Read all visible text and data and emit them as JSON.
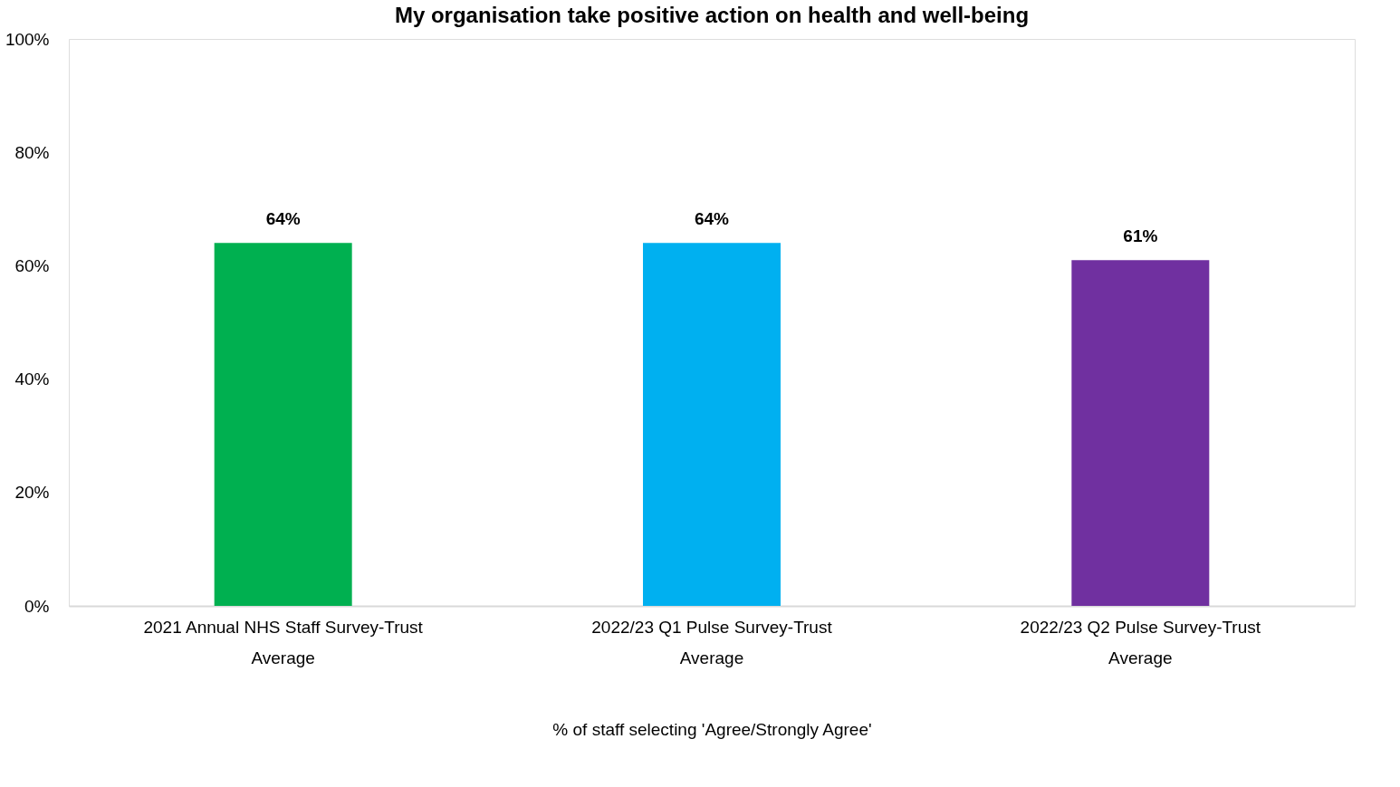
{
  "chart_data": {
    "type": "bar",
    "title": "My organisation take positive action on health and well-being",
    "categories": [
      "2021 Annual NHS Staff Survey-Trust Average",
      "2022/23 Q1 Pulse Survey-Trust Average",
      "2022/23 Q2 Pulse Survey-Trust Average"
    ],
    "values": [
      64,
      64,
      61
    ],
    "colors": [
      "#00b050",
      "#00b0f0",
      "#7030a0"
    ],
    "value_labels": [
      "64%",
      "64%",
      "61%"
    ],
    "xlabel": "% of staff selecting 'Agree/Strongly Agree'",
    "ylim": [
      0,
      100
    ],
    "yticks": [
      {
        "value": 0,
        "label": "0%"
      },
      {
        "value": 20,
        "label": "20%"
      },
      {
        "value": 40,
        "label": "40%"
      },
      {
        "value": 60,
        "label": "60%"
      },
      {
        "value": 80,
        "label": "80%"
      },
      {
        "value": 100,
        "label": "100%"
      }
    ],
    "grid": false,
    "legend": false
  }
}
